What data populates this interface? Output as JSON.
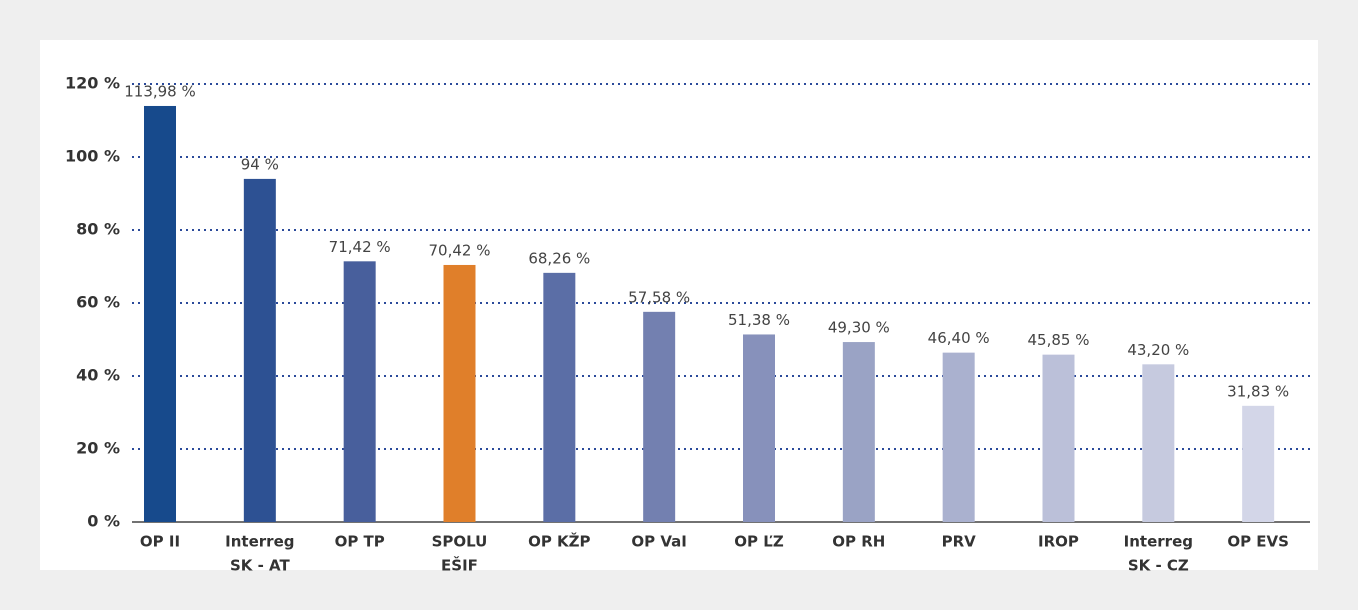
{
  "chart_data": {
    "type": "bar",
    "categories": [
      [
        "OP II"
      ],
      [
        "Interreg",
        "SK - AT"
      ],
      [
        "OP TP"
      ],
      [
        "SPOLU",
        "EŠIF"
      ],
      [
        "OP KŽP"
      ],
      [
        "OP VaI"
      ],
      [
        "OP ĽZ"
      ],
      [
        "OP RH"
      ],
      [
        "PRV"
      ],
      [
        "IROP"
      ],
      [
        "Interreg",
        "SK - CZ"
      ],
      [
        "OP EVS"
      ]
    ],
    "values": [
      113.98,
      94,
      71.42,
      70.42,
      68.26,
      57.58,
      51.38,
      49.3,
      46.4,
      45.85,
      43.2,
      31.83
    ],
    "value_labels": [
      "113,98 %",
      "94 %",
      "71,42 %",
      "70,42 %",
      "68,26 %",
      "57,58 %",
      "51,38 %",
      "49,30 %",
      "46,40 %",
      "45,85 %",
      "43,20 %",
      "31,83 %"
    ],
    "colors": [
      "#174a8c",
      "#2d5193",
      "#485f9c",
      "#e07f2a",
      "#5b6ea6",
      "#7380b0",
      "#8791bb",
      "#9aa3c5",
      "#aab1cf",
      "#bbc0d9",
      "#c6cadf",
      "#d3d6e8"
    ],
    "ylim": [
      0,
      120
    ],
    "yticks": [
      {
        "value": 0,
        "label": "0 %"
      },
      {
        "value": 20,
        "label": "20 %"
      },
      {
        "value": 40,
        "label": "40 %"
      },
      {
        "value": 60,
        "label": "60 %"
      },
      {
        "value": 80,
        "label": "80 %"
      },
      {
        "value": 100,
        "label": "100 %"
      },
      {
        "value": 120,
        "label": "120 %"
      }
    ],
    "grid": true
  }
}
